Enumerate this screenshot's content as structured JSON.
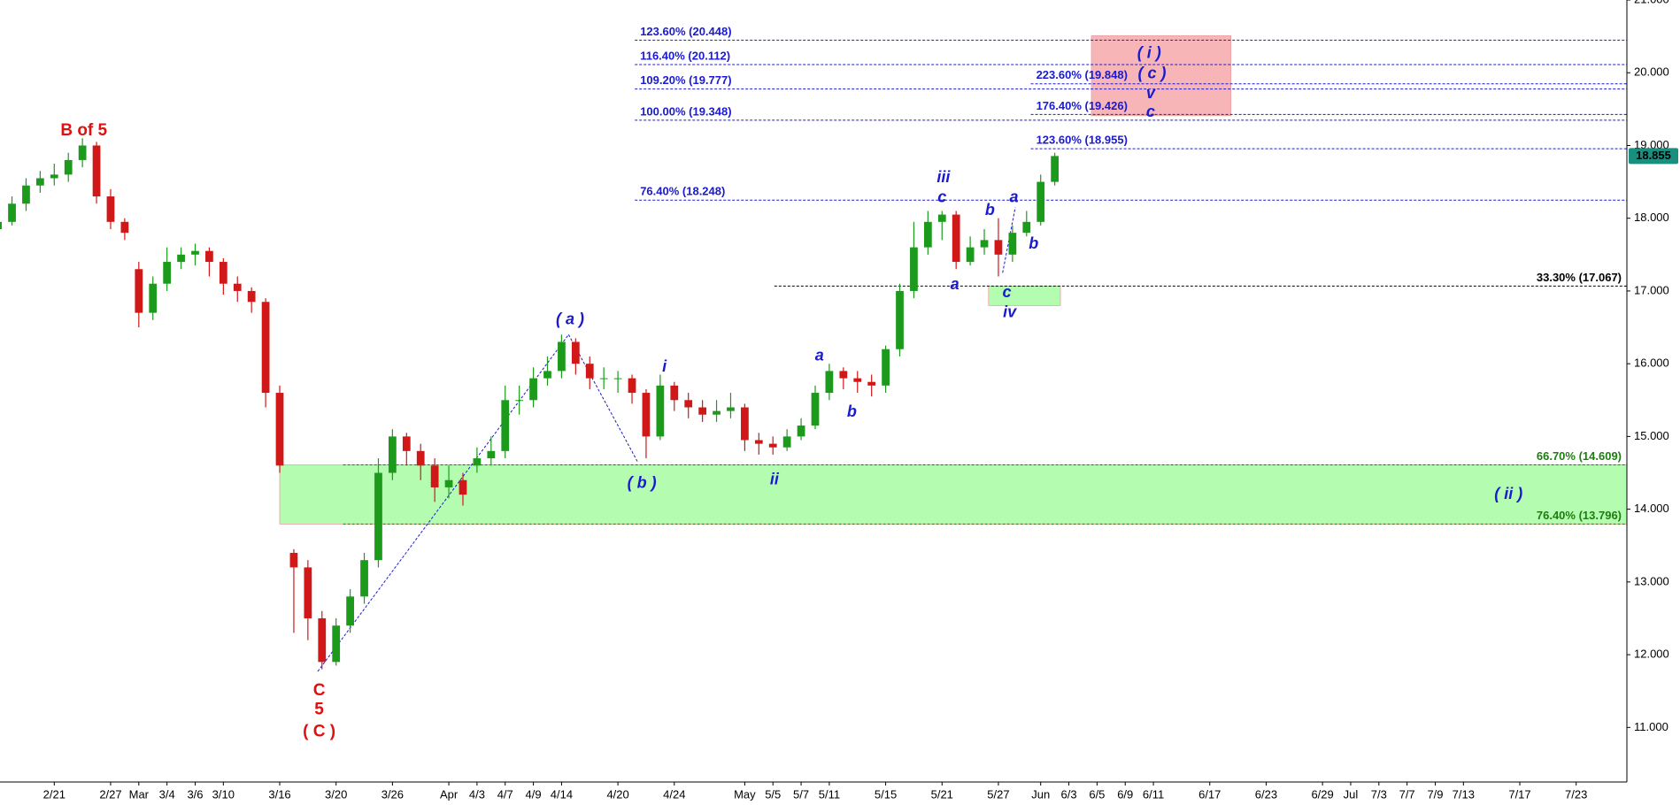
{
  "chart_data": {
    "type": "candlestick",
    "x": [
      0,
      1,
      2,
      3,
      4,
      5,
      6,
      7,
      8,
      9,
      10,
      11,
      12,
      13,
      14,
      15,
      16,
      17,
      18,
      19,
      20,
      21,
      22,
      23,
      24,
      25,
      26,
      27,
      28,
      29,
      30,
      31,
      32,
      33,
      34,
      35,
      36,
      37,
      38,
      39,
      40,
      41,
      42,
      43,
      44,
      45,
      46,
      47,
      48,
      49,
      50,
      51,
      52,
      53,
      54,
      55,
      56,
      57,
      58,
      59,
      60,
      61,
      62,
      63,
      64,
      65,
      66,
      67,
      68,
      69,
      70,
      71,
      72,
      73,
      74,
      75
    ],
    "open": [
      17.85,
      17.95,
      18.2,
      18.45,
      18.55,
      18.6,
      18.8,
      19.0,
      18.3,
      17.95,
      17.3,
      16.7,
      17.1,
      17.4,
      17.5,
      17.55,
      17.4,
      17.1,
      17.0,
      16.85,
      15.6,
      13.4,
      13.2,
      12.5,
      11.9,
      12.4,
      12.8,
      13.3,
      14.5,
      15.0,
      14.8,
      14.6,
      14.3,
      14.4,
      14.6,
      14.7,
      14.8,
      15.5,
      15.5,
      15.8,
      15.9,
      16.3,
      16.0,
      15.8,
      15.8,
      15.8,
      15.6,
      15.0,
      15.7,
      15.5,
      15.4,
      15.3,
      15.35,
      15.4,
      14.95,
      14.9,
      14.85,
      15.0,
      15.15,
      15.6,
      15.9,
      15.8,
      15.75,
      15.7,
      16.2,
      17.0,
      17.6,
      17.95,
      18.05,
      17.4,
      17.6,
      17.7,
      17.5,
      17.8,
      17.95,
      18.5
    ],
    "high": [
      18.1,
      18.3,
      18.55,
      18.65,
      18.75,
      18.9,
      19.1,
      19.05,
      18.4,
      18.0,
      17.4,
      17.2,
      17.6,
      17.6,
      17.65,
      17.6,
      17.45,
      17.2,
      17.05,
      16.9,
      15.7,
      13.45,
      13.3,
      12.6,
      12.5,
      12.9,
      13.4,
      14.7,
      15.1,
      15.05,
      14.9,
      14.7,
      14.6,
      14.5,
      14.85,
      15.0,
      15.7,
      15.7,
      15.95,
      16.1,
      16.4,
      16.35,
      16.1,
      15.95,
      15.9,
      15.85,
      15.65,
      15.85,
      15.75,
      15.6,
      15.5,
      15.5,
      15.6,
      15.45,
      15.05,
      15.0,
      15.1,
      15.25,
      15.7,
      16.0,
      15.95,
      15.9,
      15.85,
      16.25,
      17.1,
      17.95,
      18.1,
      18.1,
      18.1,
      17.75,
      17.85,
      18.0,
      17.9,
      18.1,
      18.6,
      18.9
    ],
    "low": [
      17.8,
      17.9,
      18.1,
      18.35,
      18.45,
      18.5,
      18.7,
      18.2,
      17.85,
      17.7,
      16.5,
      16.6,
      17.0,
      17.3,
      17.35,
      17.2,
      16.95,
      16.85,
      16.7,
      15.4,
      14.5,
      12.3,
      12.2,
      11.8,
      11.85,
      12.3,
      12.7,
      13.2,
      14.4,
      14.6,
      14.4,
      14.1,
      14.15,
      14.05,
      14.5,
      14.6,
      14.7,
      15.3,
      15.4,
      15.7,
      15.8,
      15.85,
      15.65,
      15.65,
      15.6,
      15.45,
      14.7,
      14.95,
      15.35,
      15.25,
      15.2,
      15.2,
      15.25,
      14.8,
      14.75,
      14.75,
      14.8,
      14.95,
      15.1,
      15.5,
      15.65,
      15.6,
      15.55,
      15.6,
      16.1,
      16.9,
      17.5,
      17.7,
      17.3,
      17.35,
      17.5,
      17.2,
      17.4,
      17.75,
      17.9,
      18.45
    ],
    "close": [
      17.95,
      18.2,
      18.45,
      18.55,
      18.6,
      18.8,
      19.0,
      18.3,
      17.95,
      17.8,
      16.7,
      17.1,
      17.4,
      17.5,
      17.55,
      17.4,
      17.1,
      17.0,
      16.85,
      15.6,
      14.6,
      13.2,
      12.5,
      11.9,
      12.4,
      12.8,
      13.3,
      14.5,
      15.0,
      14.8,
      14.6,
      14.3,
      14.4,
      14.2,
      14.7,
      14.8,
      15.5,
      15.5,
      15.8,
      15.9,
      16.3,
      16.0,
      15.8,
      15.8,
      15.8,
      15.6,
      15.0,
      15.7,
      15.5,
      15.4,
      15.3,
      15.35,
      15.4,
      14.95,
      14.9,
      14.85,
      15.0,
      15.15,
      15.6,
      15.9,
      15.8,
      15.75,
      15.7,
      16.2,
      17.0,
      17.6,
      17.95,
      18.05,
      17.4,
      17.6,
      17.7,
      17.5,
      17.8,
      17.95,
      18.5,
      18.855
    ],
    "up_color": "#1c9a1c",
    "down_color": "#d01818",
    "xlim": [
      0.15,
      115.6
    ],
    "ylim": [
      10.25,
      21.0
    ],
    "yticks": [
      {
        "value": 11,
        "label": "11.000"
      },
      {
        "value": 12,
        "label": "12.000"
      },
      {
        "value": 13,
        "label": "13.000"
      },
      {
        "value": 14,
        "label": "14.000"
      },
      {
        "value": 15,
        "label": "15.000"
      },
      {
        "value": 16,
        "label": "16.000"
      },
      {
        "value": 17,
        "label": "17.000"
      },
      {
        "value": 18,
        "label": "18.000"
      },
      {
        "value": 19,
        "label": "19.000"
      },
      {
        "value": 20,
        "label": "20.000"
      },
      {
        "value": 21,
        "label": "21.000"
      }
    ],
    "xticks": [
      {
        "value": 4,
        "label": "2/21"
      },
      {
        "value": 8,
        "label": "2/27"
      },
      {
        "value": 10,
        "label": "Mar"
      },
      {
        "value": 12,
        "label": "3/4"
      },
      {
        "value": 14,
        "label": "3/6"
      },
      {
        "value": 16,
        "label": "3/10"
      },
      {
        "value": 20,
        "label": "3/16"
      },
      {
        "value": 24,
        "label": "3/20"
      },
      {
        "value": 28,
        "label": "3/26"
      },
      {
        "value": 32,
        "label": "Apr"
      },
      {
        "value": 34,
        "label": "4/3"
      },
      {
        "value": 36,
        "label": "4/7"
      },
      {
        "value": 38,
        "label": "4/9"
      },
      {
        "value": 40,
        "label": "4/14"
      },
      {
        "value": 44,
        "label": "4/20"
      },
      {
        "value": 48,
        "label": "4/24"
      },
      {
        "value": 53,
        "label": "May"
      },
      {
        "value": 55,
        "label": "5/5"
      },
      {
        "value": 57,
        "label": "5/7"
      },
      {
        "value": 59,
        "label": "5/11"
      },
      {
        "value": 63,
        "label": "5/15"
      },
      {
        "value": 67,
        "label": "5/21"
      },
      {
        "value": 71,
        "label": "5/27"
      },
      {
        "value": 74,
        "label": "Jun"
      },
      {
        "value": 76,
        "label": "6/3"
      },
      {
        "value": 78,
        "label": "6/5"
      },
      {
        "value": 80,
        "label": "6/9"
      },
      {
        "value": 82,
        "label": "6/11"
      },
      {
        "value": 86,
        "label": "6/17"
      },
      {
        "value": 90,
        "label": "6/23"
      },
      {
        "value": 94,
        "label": "6/29"
      },
      {
        "value": 96,
        "label": "Jul"
      },
      {
        "value": 98,
        "label": "7/3"
      },
      {
        "value": 100,
        "label": "7/7"
      },
      {
        "value": 102,
        "label": "7/9"
      },
      {
        "value": 104,
        "label": "7/13"
      },
      {
        "value": 108,
        "label": "7/17"
      },
      {
        "value": 112,
        "label": "7/23"
      }
    ],
    "last_price": 18.855,
    "zones": [
      {
        "x": [
          20,
          115.6
        ],
        "y": [
          13.796,
          14.609
        ],
        "color": "#b4fcb0"
      },
      {
        "x": [
          70.3,
          75.4
        ],
        "y": [
          16.8,
          17.067
        ],
        "color": "#b4fcb0"
      },
      {
        "x": [
          77.6,
          87.5
        ],
        "y": [
          19.41,
          20.51
        ],
        "color": "#f7b5b8"
      }
    ],
    "levels": [
      {
        "label": "123.60% (20.448)",
        "value": 20.448,
        "from": 45.2,
        "color": "#1a1ad0",
        "label_at": "start"
      },
      {
        "label": "116.40% (20.112)",
        "value": 20.112,
        "from": 45.2,
        "color": "#1a1ad0",
        "label_at": "start"
      },
      {
        "label": "109.20% (19.777)",
        "value": 19.777,
        "from": 45.2,
        "color": "#1a1ad0",
        "label_at": "start"
      },
      {
        "label": "100.00% (19.348)",
        "value": 19.348,
        "from": 45.2,
        "color": "#1a1ad0",
        "label_at": "start"
      },
      {
        "label": "76.40% (18.248)",
        "value": 18.248,
        "from": 45.2,
        "color": "#1a1ad0",
        "label_at": "start"
      },
      {
        "label": "223.60% (19.848)",
        "value": 19.848,
        "from": 73.3,
        "color": "#1a1ad0",
        "label_at": "start"
      },
      {
        "label": "176.40% (19.426)",
        "value": 19.426,
        "from": 73.3,
        "color": "#1a1ad0",
        "label_at": "start"
      },
      {
        "label": "123.60% (18.955)",
        "value": 18.955,
        "from": 73.3,
        "color": "#1a1ad0",
        "label_at": "start"
      },
      {
        "label": "33.30% (17.067)",
        "value": 17.067,
        "from": 55.1,
        "color": "#000000",
        "label_at": "end"
      },
      {
        "label": "66.70% (14.609)",
        "value": 14.609,
        "from": 24.5,
        "color": "#1e7d10",
        "label_at": "end"
      },
      {
        "label": "76.40% (13.796)",
        "value": 13.796,
        "from": 24.5,
        "color": "#1e7d10",
        "label_at": "end"
      }
    ],
    "trendlines": [
      {
        "x": [
          22.7,
          40.5
        ],
        "y": [
          11.77,
          16.4
        ],
        "color": "#1a1ad0"
      },
      {
        "x": [
          40.5,
          45.4
        ],
        "y": [
          16.4,
          14.65
        ],
        "color": "#1a1ad0"
      },
      {
        "x": [
          71.3,
          72.2
        ],
        "y": [
          17.25,
          18.15
        ],
        "color": "#1a1ad0"
      }
    ],
    "annotations": [
      {
        "text": "B of 5",
        "x": 6.1,
        "y": 19.2,
        "color": "#e01010"
      },
      {
        "text": "C",
        "x": 22.8,
        "y": 11.5,
        "color": "#e01010"
      },
      {
        "text": "5",
        "x": 22.8,
        "y": 11.24,
        "color": "#e01010"
      },
      {
        "text": "( C )",
        "x": 22.8,
        "y": 10.94,
        "color": "#e01010"
      },
      {
        "text": "( a )",
        "x": 40.6,
        "y": 16.6,
        "color": "#1a1ad0"
      },
      {
        "text": "( b )",
        "x": 45.7,
        "y": 14.35,
        "color": "#1a1ad0"
      },
      {
        "text": "i",
        "x": 47.3,
        "y": 15.95,
        "color": "#1a1ad0"
      },
      {
        "text": "ii",
        "x": 55.1,
        "y": 14.4,
        "color": "#1a1ad0"
      },
      {
        "text": "a",
        "x": 58.3,
        "y": 16.1,
        "color": "#1a1ad0"
      },
      {
        "text": "b",
        "x": 60.6,
        "y": 15.33,
        "color": "#1a1ad0"
      },
      {
        "text": "iii",
        "x": 67.1,
        "y": 18.55,
        "color": "#1a1ad0"
      },
      {
        "text": "c",
        "x": 67.0,
        "y": 18.28,
        "color": "#1a1ad0"
      },
      {
        "text": "a",
        "x": 67.9,
        "y": 17.08,
        "color": "#1a1ad0"
      },
      {
        "text": "b",
        "x": 70.4,
        "y": 18.1,
        "color": "#1a1ad0"
      },
      {
        "text": "a",
        "x": 72.1,
        "y": 18.28,
        "color": "#1a1ad0"
      },
      {
        "text": "b",
        "x": 73.5,
        "y": 17.64,
        "color": "#1a1ad0"
      },
      {
        "text": "c",
        "x": 71.6,
        "y": 16.97,
        "color": "#1a1ad0"
      },
      {
        "text": "iv",
        "x": 71.8,
        "y": 16.7,
        "color": "#1a1ad0"
      },
      {
        "text": "( i )",
        "x": 81.7,
        "y": 20.26,
        "color": "#1a1ad0"
      },
      {
        "text": "( c )",
        "x": 81.9,
        "y": 19.98,
        "color": "#1a1ad0"
      },
      {
        "text": "v",
        "x": 81.8,
        "y": 19.71,
        "color": "#1a1ad0"
      },
      {
        "text": "c",
        "x": 81.8,
        "y": 19.45,
        "color": "#1a1ad0"
      },
      {
        "text": "( ii )",
        "x": 107.2,
        "y": 14.2,
        "color": "#1a1ad0"
      }
    ]
  }
}
